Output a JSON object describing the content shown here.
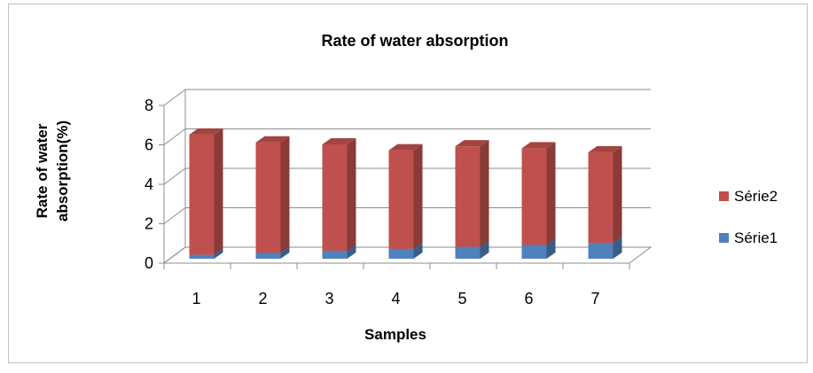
{
  "chart_data": {
    "type": "bar",
    "stacked": true,
    "three_d": true,
    "title": "Rate of water absorption",
    "xlabel": "Samples",
    "ylabel_lines": [
      "Rate of water",
      "absorption(%)"
    ],
    "categories": [
      "1",
      "2",
      "3",
      "4",
      "5",
      "6",
      "7"
    ],
    "ylim": [
      0,
      8
    ],
    "yticks": [
      "0",
      "2",
      "4",
      "6",
      "8"
    ],
    "grid": true,
    "legend_position": "right",
    "series": [
      {
        "name": "Série1",
        "color": "#4f81bd",
        "values": [
          0.2,
          0.3,
          0.4,
          0.5,
          0.6,
          0.7,
          0.8
        ]
      },
      {
        "name": "Série2",
        "color": "#c0504d",
        "values": [
          6.1,
          5.6,
          5.4,
          5.0,
          5.1,
          4.9,
          4.6
        ]
      }
    ]
  }
}
